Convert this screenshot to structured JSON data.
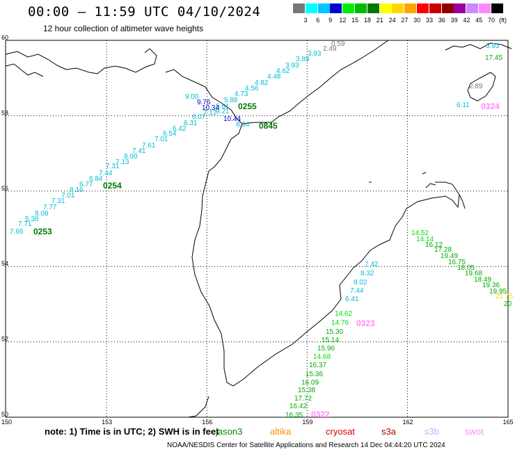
{
  "header": {
    "title": "00:00 – 11:59 UTC 04/10/2024",
    "subtitle": "12 hour collection of altimeter wave heights"
  },
  "legend": {
    "colors": [
      "#777777",
      "#00ffff",
      "#00c8ff",
      "#0000cd",
      "#00ee00",
      "#00bb00",
      "#007700",
      "#ffff00",
      "#ffd700",
      "#ffa500",
      "#ff0000",
      "#c80000",
      "#900000",
      "#990099",
      "#cc88ff",
      "#ff88ff",
      "#000000"
    ],
    "labels": [
      "3",
      "6",
      "9",
      "12",
      "15",
      "18",
      "21",
      "24",
      "27",
      "30",
      "33",
      "36",
      "39",
      "42",
      "45",
      "70"
    ],
    "unit": "(ft)"
  },
  "axes": {
    "lat_labels": [
      "60",
      "58",
      "56",
      "54",
      "52",
      "50"
    ],
    "lon_labels": [
      "150",
      "153",
      "156",
      "159",
      "162",
      "165"
    ]
  },
  "observations": [
    {
      "v": "7.66",
      "c": "#00bcd4"
    },
    {
      "v": "7.71",
      "c": "#00bcd4"
    },
    {
      "v": "5.38",
      "c": "#00bcd4"
    },
    {
      "v": "8.08",
      "c": "#00bcd4"
    },
    {
      "v": "7.77",
      "c": "#00bcd4"
    },
    {
      "v": "7.31",
      "c": "#00bcd4"
    },
    {
      "v": "7.01",
      "c": "#00bcd4"
    },
    {
      "v": "8.16",
      "c": "#00bcd4"
    },
    {
      "v": "6.77",
      "c": "#00bcd4"
    },
    {
      "v": "6.84",
      "c": "#00bcd4"
    },
    {
      "v": "7.44",
      "c": "#00bcd4"
    },
    {
      "v": "7.31",
      "c": "#00bcd4"
    },
    {
      "v": "7.13",
      "c": "#00bcd4"
    },
    {
      "v": "8.00",
      "c": "#00bcd4"
    },
    {
      "v": "7.41",
      "c": "#00bcd4"
    },
    {
      "v": "7.61",
      "c": "#00bcd4"
    },
    {
      "v": "7.01",
      "c": "#00bcd4"
    },
    {
      "v": "6.54",
      "c": "#00bcd4"
    },
    {
      "v": "6.42",
      "c": "#00bcd4"
    },
    {
      "v": "6.31",
      "c": "#00bcd4"
    },
    {
      "v": "6.07",
      "c": "#00bcd4"
    },
    {
      "v": "7.12",
      "c": "#00bcd4"
    },
    {
      "v": "9.21",
      "c": "#00bcd4"
    },
    {
      "v": "5.61",
      "c": "#00bcd4"
    },
    {
      "v": "5.88",
      "c": "#00bcd4"
    },
    {
      "v": "4.73",
      "c": "#00bcd4"
    },
    {
      "v": "4.56",
      "c": "#00bcd4"
    },
    {
      "v": "4.82",
      "c": "#00bcd4"
    },
    {
      "v": "4.48",
      "c": "#00bcd4"
    },
    {
      "v": "4.62",
      "c": "#00bcd4"
    },
    {
      "v": "3.93",
      "c": "#00bcd4"
    },
    {
      "v": "3.89",
      "c": "#00bcd4"
    },
    {
      "v": "3.93",
      "c": "#00bcd4"
    },
    {
      "v": "2.49",
      "c": "#777777"
    },
    {
      "v": "0.59",
      "c": "#777777"
    },
    {
      "v": "9.00",
      "c": "#00bcd4"
    },
    {
      "v": "9.76",
      "c": "#0000cd"
    },
    {
      "v": "10.34",
      "c": "#0000cd"
    },
    {
      "v": "10.44",
      "c": "#0000cd"
    },
    {
      "v": "8.94",
      "c": "#00bcd4"
    },
    {
      "v": "5.93",
      "c": "#00bcd4"
    },
    {
      "v": "17.45",
      "c": "#00aa00"
    },
    {
      "v": "2.89",
      "c": "#777777"
    },
    {
      "v": "6.11",
      "c": "#00bcd4"
    },
    {
      "v": "14.52",
      "c": "#00dd00"
    },
    {
      "v": "14.14",
      "c": "#00dd00"
    },
    {
      "v": "16.12",
      "c": "#00aa00"
    },
    {
      "v": "17.28",
      "c": "#00aa00"
    },
    {
      "v": "19.49",
      "c": "#00aa00"
    },
    {
      "v": "16.75",
      "c": "#00aa00"
    },
    {
      "v": "18.05",
      "c": "#00aa00"
    },
    {
      "v": "19.68",
      "c": "#00aa00"
    },
    {
      "v": "18.49",
      "c": "#00aa00"
    },
    {
      "v": "19.36",
      "c": "#00aa00"
    },
    {
      "v": "19.95",
      "c": "#00aa00"
    },
    {
      "v": "21.75",
      "c": "#ffd700"
    },
    {
      "v": "20",
      "c": "#00aa00"
    },
    {
      "v": "7.42",
      "c": "#00bcd4"
    },
    {
      "v": "8.32",
      "c": "#00bcd4"
    },
    {
      "v": "8.02",
      "c": "#00bcd4"
    },
    {
      "v": "7.44",
      "c": "#00bcd4"
    },
    {
      "v": "6.41",
      "c": "#00bcd4"
    },
    {
      "v": "14.62",
      "c": "#00dd00"
    },
    {
      "v": "14.76",
      "c": "#00dd00"
    },
    {
      "v": "15.30",
      "c": "#00aa00"
    },
    {
      "v": "15.14",
      "c": "#00aa00"
    },
    {
      "v": "15.96",
      "c": "#00aa00"
    },
    {
      "v": "14.68",
      "c": "#00dd00"
    },
    {
      "v": "16.37",
      "c": "#00aa00"
    },
    {
      "v": "15.36",
      "c": "#00aa00"
    },
    {
      "v": "16.09",
      "c": "#00aa00"
    },
    {
      "v": "15.38",
      "c": "#00aa00"
    },
    {
      "v": "17.72",
      "c": "#00aa00"
    },
    {
      "v": "16.42",
      "c": "#00aa00"
    },
    {
      "v": "16.35",
      "c": "#00aa00"
    }
  ],
  "passes": [
    {
      "t": "0253",
      "c": "#007700"
    },
    {
      "t": "0254",
      "c": "#007700"
    },
    {
      "t": "0255",
      "c": "#007700"
    },
    {
      "t": "0845",
      "c": "#007700"
    },
    {
      "t": "0324",
      "c": "#ff88ff"
    },
    {
      "t": "0323",
      "c": "#ff88ff"
    },
    {
      "t": "0322",
      "c": "#ff88ff"
    }
  ],
  "note": "note: 1) Time is in UTC; 2) SWH is in feet",
  "satellites": [
    {
      "name": "jason3",
      "color": "#008800"
    },
    {
      "name": "altika",
      "color": "#ff8c00"
    },
    {
      "name": "cryosat",
      "color": "#dd0000"
    },
    {
      "name": "s3a",
      "color": "#aa0000"
    },
    {
      "name": "s3b",
      "color": "#ccaaff"
    },
    {
      "name": "swot",
      "color": "#ff88ff"
    }
  ],
  "footer": "NOAA/NESDIS Center for Satellite Applications and Research    14 Dec 04:44:20 UTC 2024"
}
